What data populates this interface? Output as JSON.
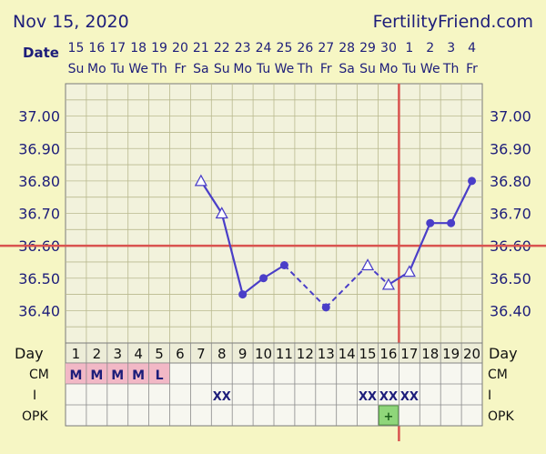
{
  "header": {
    "date": "Nov 15, 2020",
    "site": "FertilityFriend.com"
  },
  "row_labels": {
    "date": "Date",
    "day": "Day",
    "cm": "CM",
    "i": "I",
    "opk": "OPK"
  },
  "colors": {
    "background": "#f6f6c4",
    "plot_bg": "#f2f2dc",
    "line": "#4a3ec8",
    "coverline": "#d9534f",
    "menstruation": "#f2b8c6",
    "opk_positive": "#8fd67a",
    "text": "#1d1d7a"
  },
  "chart_data": {
    "type": "line",
    "title": "",
    "xlabel": "Day",
    "ylabel": "",
    "ylim": [
      36.3,
      36.6
    ],
    "yticks": [
      "37.00",
      "36.90",
      "36.80",
      "36.70",
      "36.60",
      "36.50",
      "36.40"
    ],
    "ytick_values": [
      37.0,
      36.9,
      36.8,
      36.7,
      36.6,
      36.5,
      36.4
    ],
    "y_range": [
      36.3,
      37.1
    ],
    "cycle_days": [
      1,
      2,
      3,
      4,
      5,
      6,
      7,
      8,
      9,
      10,
      11,
      12,
      13,
      14,
      15,
      16,
      17,
      18,
      19,
      20
    ],
    "dates": [
      "15",
      "16",
      "17",
      "18",
      "19",
      "20",
      "21",
      "22",
      "23",
      "24",
      "25",
      "26",
      "27",
      "28",
      "29",
      "30",
      "1",
      "2",
      "3",
      "4"
    ],
    "weekdays": [
      "Su",
      "Mo",
      "Tu",
      "We",
      "Th",
      "Fr",
      "Sa",
      "Su",
      "Mo",
      "Tu",
      "We",
      "Th",
      "Fr",
      "Sa",
      "Su",
      "Mo",
      "Tu",
      "We",
      "Th",
      "Fr"
    ],
    "temperatures": [
      {
        "day": 7,
        "value": 36.8,
        "marker": "open-triangle"
      },
      {
        "day": 8,
        "value": 36.7,
        "marker": "open-triangle"
      },
      {
        "day": 9,
        "value": 36.45,
        "marker": "dot"
      },
      {
        "day": 10,
        "value": 36.5,
        "marker": "dot"
      },
      {
        "day": 11,
        "value": 36.54,
        "marker": "dot"
      },
      {
        "day": 13,
        "value": 36.41,
        "marker": "dot"
      },
      {
        "day": 15,
        "value": 36.54,
        "marker": "open-triangle"
      },
      {
        "day": 16,
        "value": 36.48,
        "marker": "open-triangle"
      },
      {
        "day": 17,
        "value": 36.52,
        "marker": "open-triangle"
      },
      {
        "day": 18,
        "value": 36.67,
        "marker": "dot"
      },
      {
        "day": 19,
        "value": 36.67,
        "marker": "dot"
      },
      {
        "day": 20,
        "value": 36.8,
        "marker": "dot"
      }
    ],
    "solid_segments": [
      [
        7,
        8
      ],
      [
        8,
        9
      ],
      [
        9,
        10
      ],
      [
        10,
        11
      ],
      [
        16,
        17
      ],
      [
        17,
        18
      ],
      [
        18,
        19
      ],
      [
        19,
        20
      ]
    ],
    "dashed_segments": [
      [
        11,
        13
      ],
      [
        13,
        15
      ],
      [
        15,
        16
      ]
    ],
    "coverline": 36.6,
    "ovulation_day": 17,
    "cm": [
      {
        "day": 1,
        "label": "M"
      },
      {
        "day": 2,
        "label": "M"
      },
      {
        "day": 3,
        "label": "M"
      },
      {
        "day": 4,
        "label": "M"
      },
      {
        "day": 5,
        "label": "L"
      }
    ],
    "intercourse": [
      {
        "day": 8,
        "label": "XX"
      },
      {
        "day": 15,
        "label": "XX"
      },
      {
        "day": 16,
        "label": "XX"
      },
      {
        "day": 17,
        "label": "XX"
      }
    ],
    "opk": [
      {
        "day": 16,
        "label": "+"
      }
    ]
  }
}
